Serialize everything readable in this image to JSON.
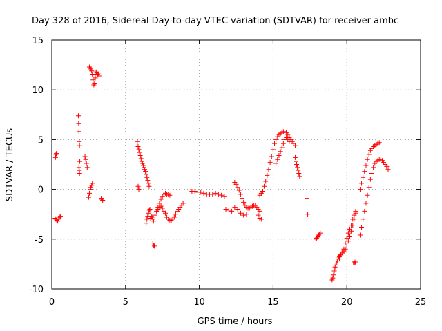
{
  "chart_data": {
    "type": "scatter",
    "title": "Day 328 of 2016, Sidereal Day-to-day VTEC variation (SDTVAR) for receiver ambc",
    "xlabel": "GPS time / hours",
    "ylabel": "SDTVAR / TECUs",
    "xlim": [
      0,
      25
    ],
    "ylim": [
      -10,
      15
    ],
    "xticks": [
      0,
      5,
      10,
      15,
      20,
      25
    ],
    "yticks": [
      -10,
      -5,
      0,
      5,
      10,
      15
    ],
    "grid": true,
    "marker": "+",
    "color": "#ff0000",
    "series": [
      {
        "name": "SDTVAR",
        "segments": [
          {
            "x": [
              0.22,
              0.28,
              0.34,
              0.4,
              0.46,
              0.52,
              0.58
            ],
            "y": [
              -2.9,
              -3.0,
              -3.1,
              -3.2,
              -3.0,
              -2.8,
              -2.7
            ]
          },
          {
            "x": [
              0.25,
              0.28,
              0.31
            ],
            "y": [
              3.2,
              3.5,
              3.6
            ]
          },
          {
            "x": [
              1.8,
              1.82,
              1.84,
              1.86,
              1.88,
              1.9
            ],
            "y": [
              7.4,
              6.6,
              5.8,
              4.8,
              4.4,
              2.8
            ]
          },
          {
            "x": [
              1.84,
              1.86,
              1.88
            ],
            "y": [
              2.2,
              1.9,
              1.6
            ]
          },
          {
            "x": [
              2.25,
              2.3,
              2.35,
              2.4
            ],
            "y": [
              3.3,
              3.0,
              2.6,
              2.2
            ]
          },
          {
            "x": [
              2.5,
              2.55,
              2.6,
              2.65,
              2.7,
              2.75
            ],
            "y": [
              -0.8,
              -0.4,
              0.0,
              0.2,
              0.4,
              0.6
            ]
          },
          {
            "x": [
              2.55,
              2.6,
              2.65,
              2.7,
              2.75,
              2.8,
              2.85,
              2.9,
              2.95,
              3.0,
              3.05,
              3.1,
              3.15,
              3.2
            ],
            "y": [
              12.3,
              12.2,
              12.1,
              11.9,
              11.5,
              11.0,
              10.5,
              10.6,
              11.2,
              11.8,
              11.7,
              11.5,
              11.6,
              11.4
            ]
          },
          {
            "x": [
              3.35,
              3.4,
              3.45
            ],
            "y": [
              -0.9,
              -1.0,
              -1.1
            ]
          },
          {
            "x": [
              5.8,
              5.85,
              5.9,
              5.95,
              6.0,
              6.05,
              6.1,
              6.15,
              6.2,
              6.25,
              6.3,
              6.35,
              6.4,
              6.45,
              6.5,
              6.55,
              6.6
            ],
            "y": [
              4.8,
              4.3,
              4.0,
              3.7,
              3.4,
              3.1,
              2.8,
              2.6,
              2.4,
              2.2,
              2.0,
              1.8,
              1.5,
              1.2,
              0.9,
              0.6,
              0.3
            ]
          },
          {
            "x": [
              5.85,
              5.9
            ],
            "y": [
              0.3,
              0.0
            ]
          },
          {
            "x": [
              6.4,
              6.45,
              6.5,
              6.55,
              6.6,
              6.65
            ],
            "y": [
              -3.4,
              -3.0,
              -2.7,
              -2.4,
              -2.1,
              -2.0
            ]
          },
          {
            "x": [
              6.7,
              6.75,
              6.8,
              6.85,
              6.9
            ],
            "y": [
              -2.9,
              -2.7,
              -2.8,
              -3.0,
              -3.2
            ]
          },
          {
            "x": [
              6.85,
              6.9,
              6.95
            ],
            "y": [
              -5.4,
              -5.6,
              -5.7
            ]
          },
          {
            "x": [
              7.0,
              7.1,
              7.2,
              7.3,
              7.4,
              7.5,
              7.6,
              7.7,
              7.8,
              7.9,
              8.0
            ],
            "y": [
              -2.6,
              -2.2,
              -1.8,
              -1.4,
              -1.0,
              -0.7,
              -0.5,
              -0.4,
              -0.5,
              -0.5,
              -0.6
            ]
          },
          {
            "x": [
              7.2,
              7.3,
              7.4,
              7.5,
              7.6,
              7.7,
              7.8,
              7.9,
              8.0,
              8.1,
              8.2,
              8.3,
              8.4,
              8.5,
              8.6,
              8.7,
              8.8,
              8.9
            ],
            "y": [
              -2.0,
              -1.8,
              -1.7,
              -1.9,
              -2.2,
              -2.4,
              -2.8,
              -3.0,
              -3.1,
              -3.1,
              -3.0,
              -2.8,
              -2.5,
              -2.2,
              -2.0,
              -1.8,
              -1.6,
              -1.4
            ]
          },
          {
            "x": [
              9.5,
              9.7,
              9.9,
              10.1,
              10.3,
              10.5,
              10.7,
              10.9,
              11.1,
              11.3,
              11.5,
              11.7
            ],
            "y": [
              -0.2,
              -0.2,
              -0.3,
              -0.3,
              -0.4,
              -0.5,
              -0.5,
              -0.5,
              -0.4,
              -0.5,
              -0.6,
              -0.7
            ]
          },
          {
            "x": [
              11.8,
              12.0,
              12.2,
              12.4,
              12.6,
              12.8,
              13.0,
              13.2
            ],
            "y": [
              -2.0,
              -2.1,
              -2.2,
              -1.8,
              -2.0,
              -2.4,
              -2.6,
              -2.5
            ]
          },
          {
            "x": [
              12.4,
              12.5,
              12.6,
              12.7,
              12.8,
              12.9,
              13.0,
              13.1,
              13.2,
              13.3,
              13.4,
              13.5,
              13.6,
              13.7,
              13.8,
              13.9,
              14.0,
              14.1
            ],
            "y": [
              0.7,
              0.5,
              0.2,
              -0.1,
              -0.5,
              -0.9,
              -1.3,
              -1.6,
              -1.8,
              -1.9,
              -1.9,
              -1.8,
              -1.7,
              -1.6,
              -1.6,
              -1.8,
              -2.0,
              -2.2
            ]
          },
          {
            "x": [
              14.0,
              14.1,
              14.2
            ],
            "y": [
              -2.6,
              -2.9,
              -3.0
            ]
          },
          {
            "x": [
              14.1,
              14.2,
              14.3,
              14.4,
              14.5,
              14.6,
              14.7,
              14.8,
              14.9,
              15.0,
              15.1,
              15.2,
              15.3,
              15.4,
              15.5,
              15.6,
              15.7,
              15.8,
              15.9,
              16.0,
              16.1,
              16.2,
              16.3,
              16.4,
              16.5
            ],
            "y": [
              -0.6,
              -0.4,
              -0.2,
              0.3,
              0.8,
              1.4,
              2.0,
              2.7,
              3.3,
              4.0,
              4.6,
              5.0,
              5.3,
              5.5,
              5.6,
              5.7,
              5.8,
              5.8,
              5.7,
              5.5,
              5.2,
              5.0,
              4.8,
              4.6,
              4.4
            ]
          },
          {
            "x": [
              15.2,
              15.3,
              15.4,
              15.5,
              15.6,
              15.7,
              15.8,
              15.9,
              16.0,
              16.1
            ],
            "y": [
              2.6,
              3.0,
              3.4,
              3.8,
              4.2,
              4.6,
              5.0,
              5.2,
              5.0,
              4.8
            ]
          },
          {
            "x": [
              16.5,
              16.55,
              16.6,
              16.65,
              16.7,
              16.75,
              16.8
            ],
            "y": [
              3.2,
              2.8,
              2.5,
              2.2,
              1.9,
              1.6,
              1.3
            ]
          },
          {
            "x": [
              17.3,
              17.35
            ],
            "y": [
              -0.9,
              -2.5
            ]
          },
          {
            "x": [
              17.9,
              17.95,
              18.0,
              18.05,
              18.1,
              18.15,
              18.2
            ],
            "y": [
              -5.0,
              -4.9,
              -4.8,
              -4.7,
              -4.6,
              -4.5,
              -4.4
            ]
          },
          {
            "x": [
              18.95,
              19.0,
              19.05,
              19.1,
              19.15,
              19.2,
              19.25,
              19.3,
              19.35,
              19.4,
              19.45,
              19.5,
              19.55,
              19.6,
              19.7,
              19.8,
              19.9,
              20.0,
              20.1,
              20.2,
              20.3,
              20.4,
              20.5,
              20.6
            ],
            "y": [
              -9.0,
              -9.1,
              -8.9,
              -8.6,
              -8.2,
              -7.8,
              -7.6,
              -7.4,
              -7.2,
              -7.0,
              -6.8,
              -6.7,
              -6.6,
              -6.5,
              -6.3,
              -6.2,
              -6.0,
              -5.6,
              -5.2,
              -4.7,
              -4.2,
              -3.6,
              -3.0,
              -2.4
            ]
          },
          {
            "x": [
              19.4,
              19.5,
              19.6,
              19.7,
              19.8,
              19.9,
              20.0,
              20.1,
              20.2,
              20.3,
              20.4,
              20.5,
              20.6
            ],
            "y": [
              -7.4,
              -7.0,
              -6.6,
              -6.4,
              -6.0,
              -5.4,
              -4.9,
              -4.4,
              -4.0,
              -3.6,
              -3.0,
              -2.6,
              -2.2
            ]
          },
          {
            "x": [
              20.45,
              20.5,
              20.55,
              20.6
            ],
            "y": [
              -7.4,
              -7.3,
              -7.4,
              -7.3
            ]
          },
          {
            "x": [
              20.9,
              21.0,
              21.1,
              21.2,
              21.3,
              21.4,
              21.5,
              21.6,
              21.7,
              21.8,
              21.9,
              22.0,
              22.1,
              22.2,
              22.3,
              22.4,
              22.5,
              22.6,
              22.7,
              22.8
            ],
            "y": [
              -4.6,
              -3.8,
              -3.0,
              -2.2,
              -1.4,
              -0.6,
              0.2,
              1.0,
              1.6,
              2.2,
              2.6,
              2.8,
              2.9,
              3.0,
              3.0,
              2.9,
              2.7,
              2.5,
              2.3,
              2.0
            ]
          },
          {
            "x": [
              20.9,
              21.0,
              21.1,
              21.2,
              21.3,
              21.4,
              21.5,
              21.6,
              21.7,
              21.8,
              21.9,
              22.0,
              22.1,
              22.2
            ],
            "y": [
              0.0,
              0.6,
              1.2,
              1.8,
              2.4,
              3.0,
              3.5,
              3.9,
              4.1,
              4.3,
              4.4,
              4.5,
              4.6,
              4.7
            ]
          }
        ]
      }
    ]
  }
}
